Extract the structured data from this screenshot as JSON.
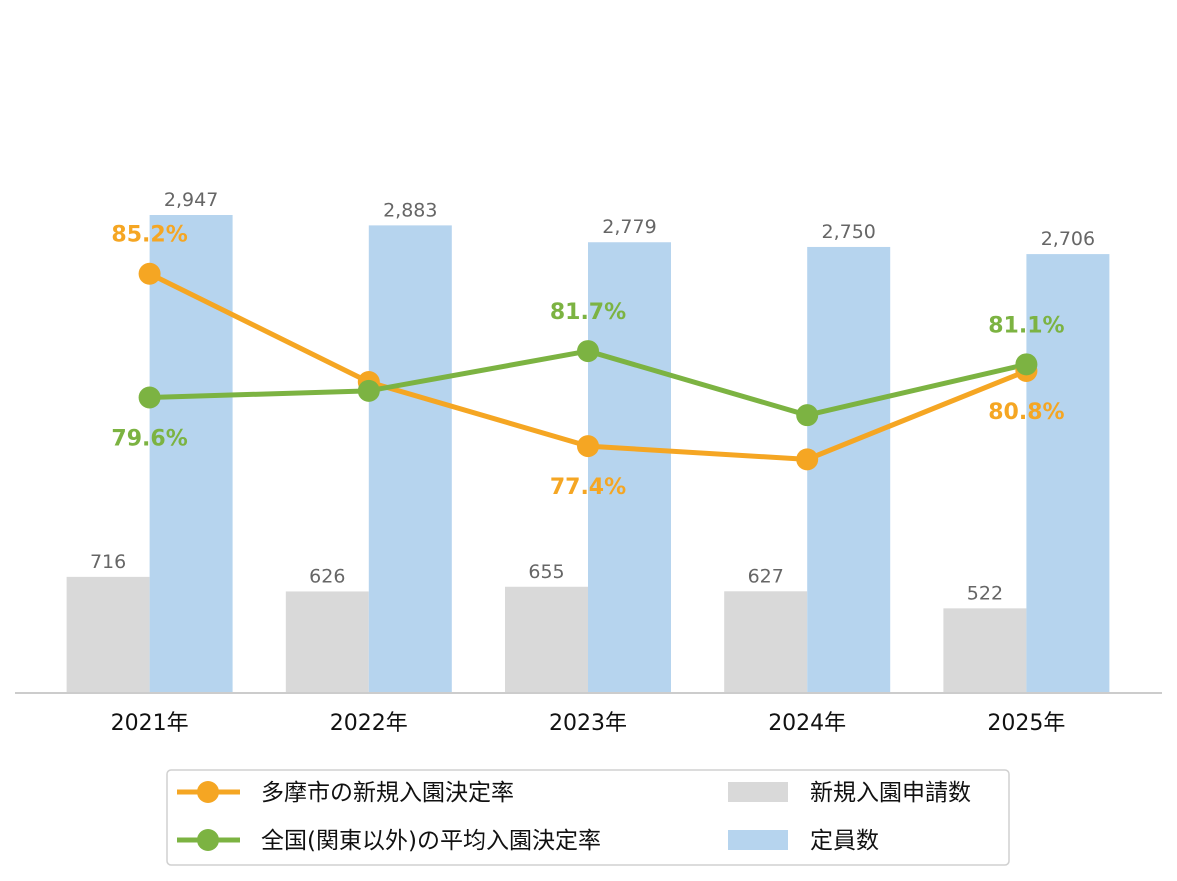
{
  "chart_data": {
    "type": "bar",
    "categories": [
      "2021年",
      "2022年",
      "2023年",
      "2024年",
      "2025年"
    ],
    "bar_series": [
      {
        "name": "新規入園申請数",
        "values": [
          716,
          626,
          655,
          627,
          522
        ],
        "labels": [
          "716",
          "626",
          "655",
          "627",
          "522"
        ],
        "color": "#d9d9d9"
      },
      {
        "name": "定員数",
        "values": [
          2947,
          2883,
          2779,
          2750,
          2706
        ],
        "labels": [
          "2,947",
          "2,883",
          "2,779",
          "2,750",
          "2,706"
        ],
        "color": "#b6d4ee"
      }
    ],
    "line_series": [
      {
        "name": "多摩市の新規入園決定率",
        "values": [
          85.2,
          80.3,
          77.4,
          76.8,
          80.8
        ],
        "unit": "%",
        "labels": [
          "85.2%",
          "",
          "77.4%",
          "",
          "80.8%"
        ],
        "color": "#f5a623"
      },
      {
        "name": "全国(関東以外)の平均入園決定率",
        "values": [
          79.6,
          79.9,
          81.7,
          78.8,
          81.1
        ],
        "unit": "%",
        "labels": [
          "79.6%",
          "",
          "81.7%",
          "",
          "81.1%"
        ],
        "color": "#7cb342"
      }
    ],
    "legend_position": "bottom",
    "grid": false,
    "axis_color": "#cccccc"
  }
}
